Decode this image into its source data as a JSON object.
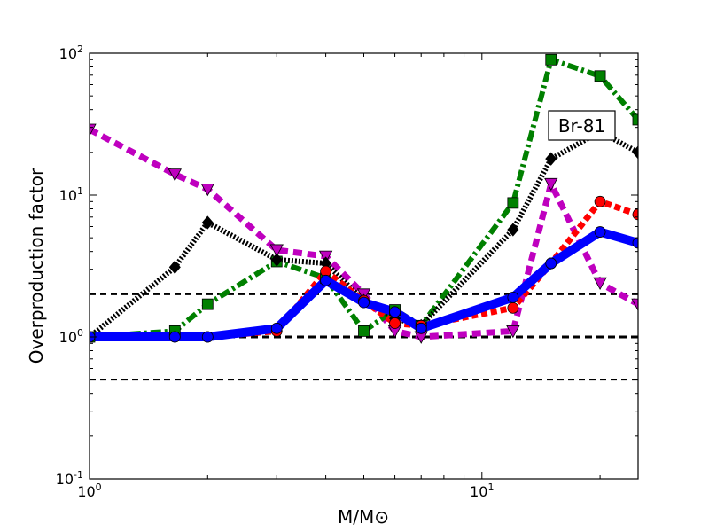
{
  "chart_data": {
    "type": "line",
    "xscale": "log",
    "yscale": "log",
    "xlim": [
      1.0,
      25.0
    ],
    "ylim": [
      0.1,
      100
    ],
    "xlabel": "M/M⊙",
    "ylabel": "Overproduction factor",
    "x_ticks": [
      {
        "value": 1,
        "label": "10",
        "exp": "0"
      },
      {
        "value": 10,
        "label": "10",
        "exp": "1"
      }
    ],
    "y_ticks": [
      {
        "value": 0.1,
        "label": "10",
        "exp": "-1"
      },
      {
        "value": 1,
        "label": "10",
        "exp": "0"
      },
      {
        "value": 10,
        "label": "10",
        "exp": "1"
      },
      {
        "value": 100,
        "label": "10",
        "exp": "2"
      }
    ],
    "annotation": "Br-81",
    "reference_lines": [
      {
        "y": 2.0,
        "style": "dashed",
        "weight": "thin"
      },
      {
        "y": 1.0,
        "style": "dashed",
        "weight": "thick"
      },
      {
        "y": 0.5,
        "style": "dashed",
        "weight": "thin"
      }
    ],
    "series": [
      {
        "color": "#0000ff",
        "style": "solid",
        "marker": "circle",
        "x": [
          1.0,
          1.65,
          2.0,
          3.0,
          4.0,
          5.0,
          6.0,
          7.0,
          12.0,
          15.0,
          20.0,
          25.0
        ],
        "y": [
          1.0,
          1.0,
          1.0,
          1.15,
          2.5,
          1.75,
          1.5,
          1.15,
          1.9,
          3.3,
          5.5,
          4.6
        ]
      },
      {
        "color": "#ff0000",
        "style": "dotted",
        "marker": "circle",
        "x": [
          1.0,
          1.65,
          2.0,
          3.0,
          4.0,
          5.0,
          6.0,
          7.0,
          12.0,
          15.0,
          20.0,
          25.0
        ],
        "y": [
          1.0,
          1.0,
          1.0,
          1.1,
          2.9,
          1.8,
          1.25,
          1.2,
          1.6,
          3.3,
          9.0,
          7.3
        ]
      },
      {
        "color": "#000000",
        "style": "densely-dotted",
        "marker": "diamond",
        "x": [
          1.0,
          1.65,
          2.0,
          3.0,
          4.0,
          5.0,
          6.0,
          7.0,
          12.0,
          15.0,
          20.0,
          25.0
        ],
        "y": [
          1.0,
          3.1,
          6.4,
          3.5,
          3.3,
          1.8,
          1.35,
          1.2,
          5.7,
          18.0,
          28.0,
          20.0
        ]
      },
      {
        "color": "#008000",
        "style": "dash-dot",
        "marker": "square",
        "x": [
          1.0,
          1.65,
          2.0,
          3.0,
          4.0,
          5.0,
          6.0,
          7.0,
          12.0,
          15.0,
          20.0,
          25.0
        ],
        "y": [
          1.0,
          1.1,
          1.7,
          3.4,
          2.6,
          1.1,
          1.55,
          1.2,
          8.8,
          90.0,
          69.0,
          34.0
        ]
      },
      {
        "color": "#bf00bf",
        "style": "dashed",
        "marker": "triangle-down",
        "x": [
          1.0,
          1.65,
          2.0,
          3.0,
          4.0,
          5.0,
          6.0,
          7.0,
          12.0,
          15.0,
          20.0,
          25.0
        ],
        "y": [
          29.0,
          14.0,
          11.0,
          4.1,
          3.7,
          2.0,
          1.1,
          1.0,
          1.1,
          12.0,
          2.4,
          1.7
        ]
      }
    ]
  }
}
